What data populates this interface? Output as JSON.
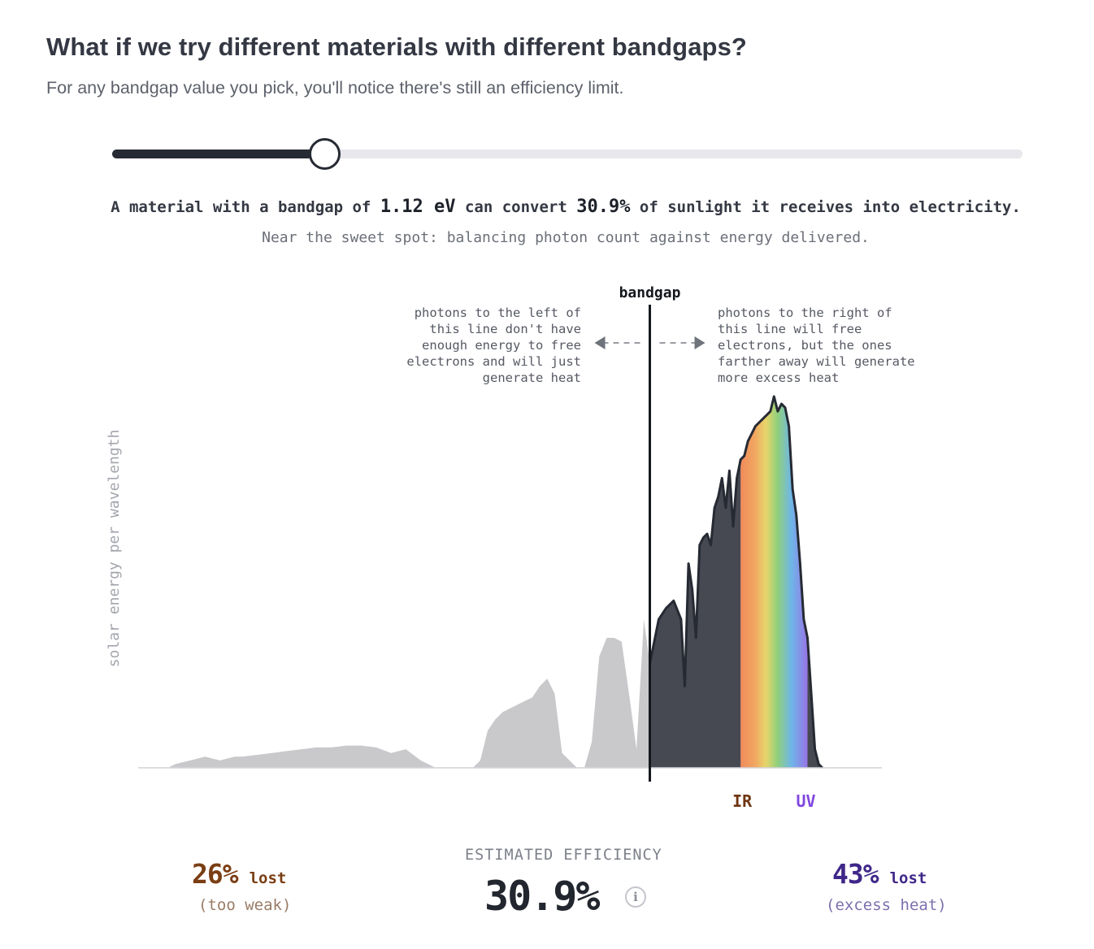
{
  "header": {
    "title": "What if we try different materials with different bandgaps?",
    "subtitle": "For any bandgap value you pick, you'll notice there's still an efficiency limit."
  },
  "slider": {
    "value_fraction": 0.233
  },
  "summary": {
    "prefix": "A material with a bandgap of ",
    "bandgap": "1.12 eV",
    "middle": " can convert ",
    "efficiency": "30.9%",
    "suffix": " of sunlight it receives into electricity.",
    "note": "Near the sweet spot: balancing photon count against energy delivered."
  },
  "chart_data": {
    "type": "area",
    "ylabel": "solar energy per wavelength",
    "marker_label": "bandgap",
    "annotation_left": [
      "photons to the left of",
      "this line don't have",
      "enough energy to free",
      "electrons and will just",
      "generate heat"
    ],
    "annotation_right": [
      "photons to the right of",
      "this line will free",
      "electrons, but the ones",
      "farther away will generate",
      "more excess heat"
    ],
    "ir_label": "IR",
    "uv_label": "UV",
    "x_range": [
      0,
      100
    ],
    "bandgap_x": 68.8,
    "visible_range": [
      81,
      90
    ],
    "y_range": [
      0,
      100
    ],
    "x": [
      0,
      4,
      5,
      7,
      9,
      11,
      13,
      14,
      16,
      18,
      20,
      22,
      24,
      26,
      28,
      30,
      32,
      34,
      36,
      38,
      40,
      42,
      43,
      44,
      45,
      46,
      47,
      48,
      49,
      50,
      51,
      52,
      53,
      54,
      55,
      56,
      57,
      58,
      59,
      60,
      61,
      62,
      63,
      64,
      65,
      66,
      67,
      68,
      68.8,
      69,
      69.5,
      70,
      71,
      72,
      73,
      73.5,
      74,
      74.5,
      75,
      75.5,
      76,
      76.5,
      77,
      77.5,
      78,
      78.5,
      79,
      79.5,
      80,
      80.5,
      81,
      81.5,
      82,
      82.5,
      83,
      83.5,
      84,
      84.5,
      85,
      85.5,
      86,
      86.5,
      87,
      87.5,
      88,
      88.5,
      89,
      89.5,
      90,
      90.5,
      91,
      91.5,
      92
    ],
    "values": [
      0,
      0,
      1,
      2,
      3,
      2,
      3,
      3,
      3.5,
      4,
      4.5,
      5,
      5.5,
      5.5,
      6,
      6,
      5.5,
      4,
      5,
      2,
      0,
      0,
      0,
      0,
      0,
      2,
      10,
      13,
      15,
      16,
      17,
      18,
      19,
      22,
      24,
      20,
      4,
      2,
      0,
      0,
      7,
      30,
      35,
      35,
      34,
      20,
      5,
      40,
      28,
      30,
      35,
      40,
      43,
      45,
      40,
      22,
      55,
      48,
      35,
      60,
      62,
      63,
      60,
      70,
      73,
      78,
      70,
      80,
      65,
      78,
      83,
      84,
      88,
      90,
      92,
      93,
      94,
      95,
      96,
      100,
      96,
      98,
      97,
      92,
      75,
      68,
      55,
      40,
      35,
      20,
      5,
      1,
      0
    ],
    "estimated_efficiency": "30.9%",
    "lost_too_weak": "26%",
    "lost_excess_heat": "43%"
  },
  "stats": {
    "left": {
      "pct": "26%",
      "lost": "lost",
      "reason": "(too weak)",
      "color": "#7a3e14"
    },
    "center": {
      "label": "ESTIMATED EFFICIENCY",
      "value": "30.9%",
      "info": "i"
    },
    "right": {
      "pct": "43%",
      "lost": "lost",
      "reason": "(excess heat)",
      "color": "#3f2789"
    }
  },
  "colors": {
    "dark_fill": "#474952",
    "light_fill": "#c9c9cc",
    "line": "#262a33",
    "ir": "#6e3511",
    "uv": "#8047e0"
  }
}
